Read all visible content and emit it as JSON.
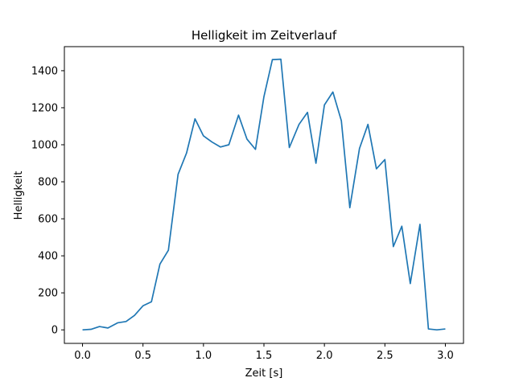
{
  "chart_data": {
    "type": "line",
    "title": "Helligkeit im Zeitverlauf",
    "xlabel": "Zeit [s]",
    "ylabel": "Helligkeit",
    "xlim": [
      -0.15,
      3.15
    ],
    "ylim": [
      -73,
      1530
    ],
    "xticks": [
      0.0,
      0.5,
      1.0,
      1.5,
      2.0,
      2.5,
      3.0
    ],
    "xtick_labels": [
      "0.0",
      "0.5",
      "1.0",
      "1.5",
      "2.0",
      "2.5",
      "3.0"
    ],
    "yticks": [
      0,
      200,
      400,
      600,
      800,
      1000,
      1200,
      1400
    ],
    "ytick_labels": [
      "0",
      "200",
      "400",
      "600",
      "800",
      "1000",
      "1200",
      "1400"
    ],
    "grid": false,
    "series": [
      {
        "color": "#1f77b4",
        "x": [
          0.0,
          0.07,
          0.14,
          0.21,
          0.29,
          0.36,
          0.43,
          0.5,
          0.57,
          0.64,
          0.71,
          0.79,
          0.86,
          0.93,
          1.0,
          1.07,
          1.14,
          1.21,
          1.29,
          1.36,
          1.43,
          1.5,
          1.57,
          1.64,
          1.71,
          1.79,
          1.86,
          1.93,
          2.0,
          2.07,
          2.14,
          2.21,
          2.29,
          2.36,
          2.43,
          2.5,
          2.57,
          2.64,
          2.71,
          2.79,
          2.86,
          2.93,
          3.0
        ],
        "y": [
          0,
          3,
          18,
          10,
          38,
          45,
          78,
          130,
          152,
          355,
          430,
          840,
          955,
          1140,
          1048,
          1015,
          988,
          1000,
          1160,
          1030,
          975,
          1260,
          1460,
          1462,
          985,
          1110,
          1175,
          900,
          1215,
          1285,
          1130,
          660,
          980,
          1110,
          870,
          920,
          450,
          560,
          250,
          570,
          5,
          0,
          5
        ]
      }
    ]
  }
}
